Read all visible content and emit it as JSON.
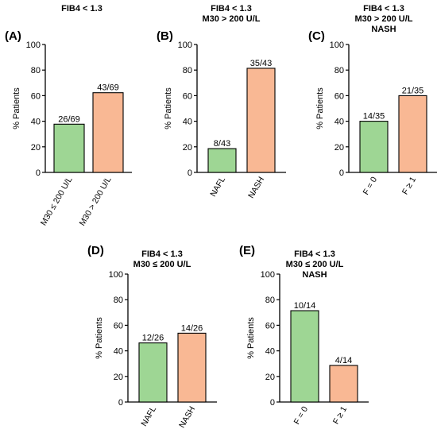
{
  "colors": {
    "green": "#9ed694",
    "orange": "#f9b894",
    "axis": "#000000"
  },
  "chart_data": [
    {
      "type": "bar",
      "panel": "(A)",
      "title_lines": [
        "FIB4 < 1.3"
      ],
      "ylabel": "% Patients",
      "ylim": [
        0,
        100
      ],
      "yticks": [
        "0",
        "20",
        "40",
        "60",
        "80",
        "100"
      ],
      "categories": [
        "M30 ≤ 200 U/L",
        "M30 > 200 U/L"
      ],
      "values": [
        37.7,
        62.3
      ],
      "data_labels": [
        "26/69",
        "43/69"
      ],
      "bar_colors": [
        "green",
        "orange"
      ]
    },
    {
      "type": "bar",
      "panel": "(B)",
      "title_lines": [
        "FIB4 < 1.3",
        "M30 > 200 U/L"
      ],
      "ylabel": "% Patients",
      "ylim": [
        0,
        100
      ],
      "yticks": [
        "0",
        "20",
        "40",
        "60",
        "80",
        "100"
      ],
      "categories": [
        "NAFL",
        "NASH"
      ],
      "values": [
        18.6,
        81.4
      ],
      "data_labels": [
        "8/43",
        "35/43"
      ],
      "bar_colors": [
        "green",
        "orange"
      ]
    },
    {
      "type": "bar",
      "panel": "(C)",
      "title_lines": [
        "FIB4 < 1.3",
        "M30 > 200 U/L",
        "NASH"
      ],
      "ylabel": "% Patients",
      "ylim": [
        0,
        100
      ],
      "yticks": [
        "0",
        "20",
        "40",
        "60",
        "80",
        "100"
      ],
      "categories": [
        "F = 0",
        "F ≥ 1"
      ],
      "values": [
        40.0,
        60.0
      ],
      "data_labels": [
        "14/35",
        "21/35"
      ],
      "bar_colors": [
        "green",
        "orange"
      ]
    },
    {
      "type": "bar",
      "panel": "(D)",
      "title_lines": [
        "FIB4 < 1.3",
        "M30 ≤ 200 U/L"
      ],
      "ylabel": "% Patients",
      "ylim": [
        0,
        100
      ],
      "yticks": [
        "0",
        "20",
        "40",
        "60",
        "80",
        "100"
      ],
      "categories": [
        "NAFL",
        "NASH"
      ],
      "values": [
        46.2,
        53.8
      ],
      "data_labels": [
        "12/26",
        "14/26"
      ],
      "bar_colors": [
        "green",
        "orange"
      ]
    },
    {
      "type": "bar",
      "panel": "(E)",
      "title_lines": [
        "FIB4 < 1.3",
        "M30 ≤ 200 U/L",
        "NASH"
      ],
      "ylabel": "% Patients",
      "ylim": [
        0,
        100
      ],
      "yticks": [
        "0",
        "20",
        "40",
        "60",
        "80",
        "100"
      ],
      "categories": [
        "F = 0",
        "F ≥ 1"
      ],
      "values": [
        71.4,
        28.6
      ],
      "data_labels": [
        "10/14",
        "4/14"
      ],
      "bar_colors": [
        "green",
        "orange"
      ]
    }
  ]
}
